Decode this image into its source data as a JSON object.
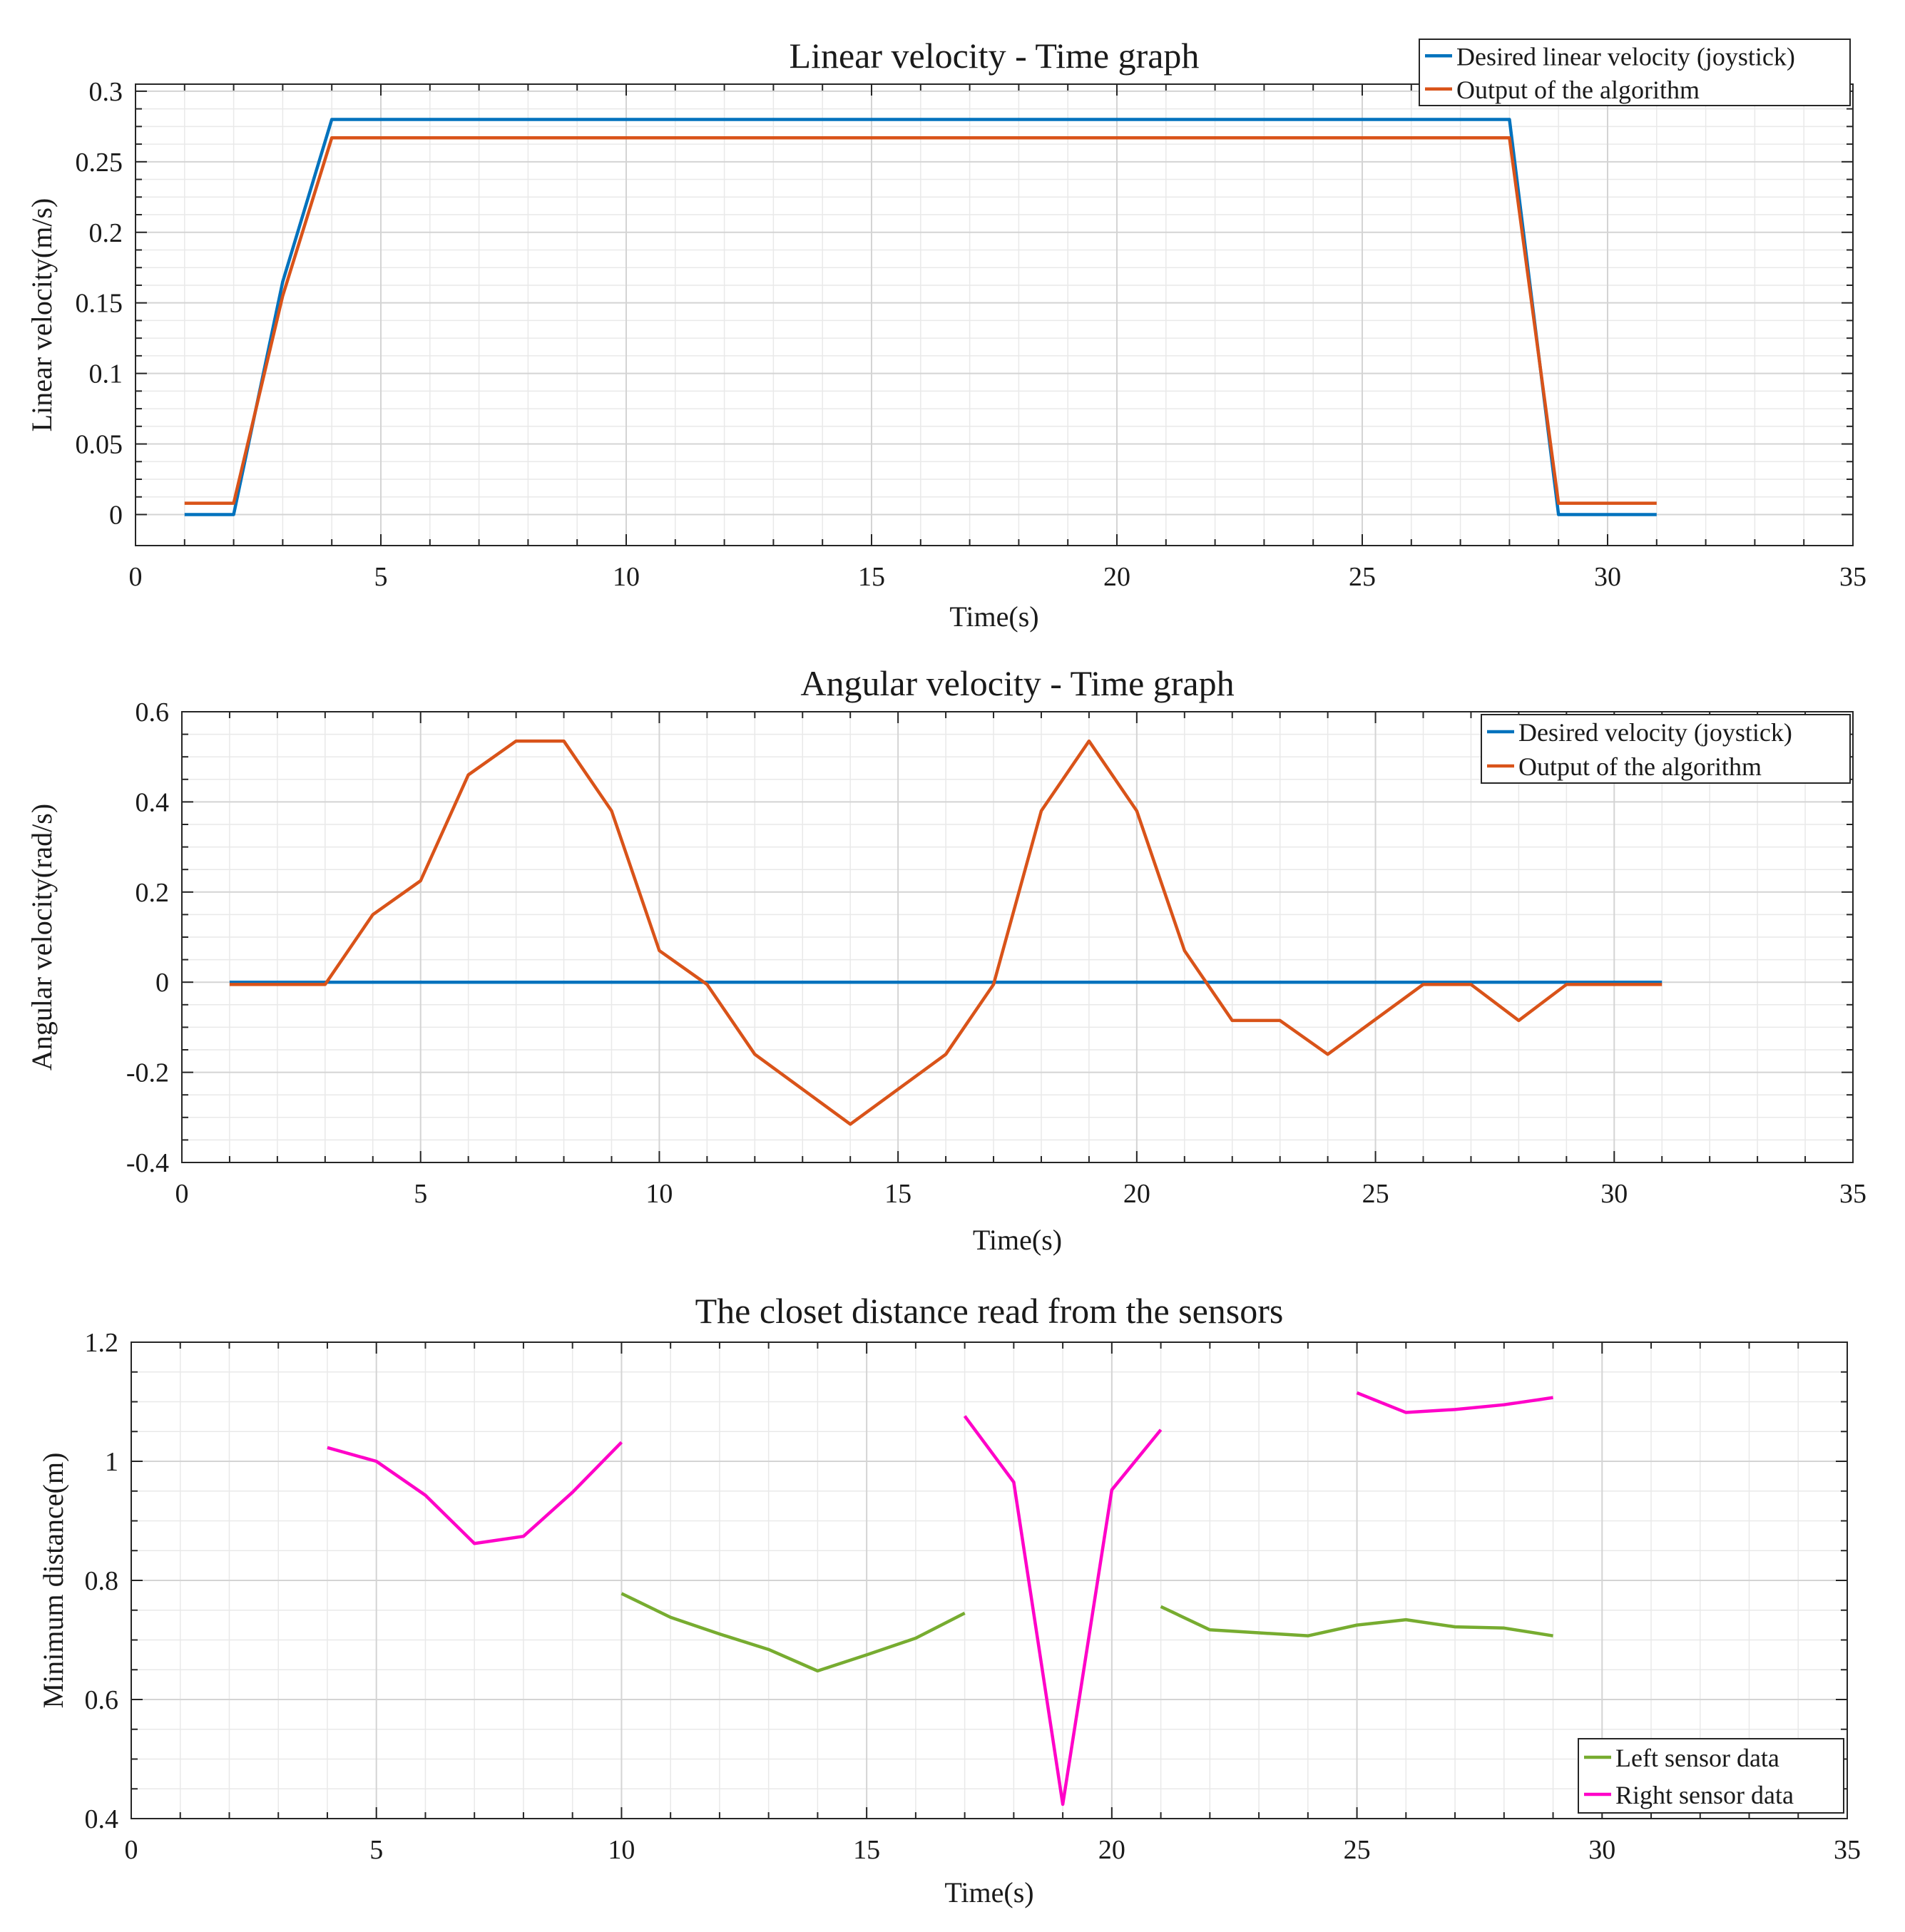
{
  "figure": {
    "description_labels": [
      "Linear velocity - Time graph",
      "Angular velocity - Time graph",
      "The closet distance read from the sensors"
    ]
  },
  "chart_data": [
    {
      "type": "line",
      "title": "Linear velocity - Time graph",
      "xlabel": "Time(s)",
      "ylabel": "Linear velocity(m/s)",
      "xlim": [
        0,
        35
      ],
      "ylim": [
        -0.022,
        0.305
      ],
      "xticks": [
        0,
        5,
        10,
        15,
        20,
        25,
        30,
        35
      ],
      "xtick_labels": [
        "0",
        "5",
        "10",
        "15",
        "20",
        "25",
        "30",
        "35"
      ],
      "yticks": [
        0,
        0.05,
        0.1,
        0.15,
        0.2,
        0.25,
        0.3
      ],
      "ytick_labels": [
        "0",
        "0.05",
        "0.1",
        "0.15",
        "0.2",
        "0.25",
        "0.3"
      ],
      "grid": true,
      "legend_position": "top-right",
      "series": [
        {
          "name": "Desired linear velocity (joystick)",
          "color": "#0072BD",
          "x": [
            1,
            2,
            3,
            4,
            28,
            29,
            31
          ],
          "y": [
            0,
            0,
            0.165,
            0.28,
            0.28,
            0,
            0
          ]
        },
        {
          "name": "Output of the algorithm",
          "color": "#D95319",
          "x": [
            1,
            2,
            3,
            4,
            28,
            29,
            31
          ],
          "y": [
            0.008,
            0.008,
            0.155,
            0.267,
            0.267,
            0.008,
            0.008
          ]
        }
      ]
    },
    {
      "type": "line",
      "title": "Angular velocity - Time graph",
      "xlabel": "Time(s)",
      "ylabel": "Angular velocity(rad/s)",
      "xlim": [
        0,
        35
      ],
      "ylim": [
        -0.4,
        0.6
      ],
      "xticks": [
        0,
        5,
        10,
        15,
        20,
        25,
        30,
        35
      ],
      "xtick_labels": [
        "0",
        "5",
        "10",
        "15",
        "20",
        "25",
        "30",
        "35"
      ],
      "yticks": [
        -0.4,
        -0.2,
        0,
        0.2,
        0.4,
        0.6
      ],
      "ytick_labels": [
        "-0.4",
        "-0.2",
        "0",
        "0.2",
        "0.4",
        "0.6"
      ],
      "grid": true,
      "legend_position": "top-right",
      "series": [
        {
          "name": "Desired velocity (joystick)",
          "color": "#0072BD",
          "x": [
            1,
            31
          ],
          "y": [
            0,
            0
          ]
        },
        {
          "name": "Output of the algorithm",
          "color": "#D95319",
          "x": [
            1,
            2,
            3,
            4,
            5,
            6,
            7,
            8,
            9,
            10,
            11,
            12,
            14,
            16,
            17,
            18,
            19,
            20,
            21,
            22,
            23,
            24,
            26,
            27,
            28,
            29,
            31
          ],
          "y": [
            -0.005,
            -0.005,
            -0.005,
            0.15,
            0.225,
            0.46,
            0.535,
            0.535,
            0.38,
            0.07,
            -0.005,
            -0.16,
            -0.315,
            -0.16,
            -0.005,
            0.38,
            0.535,
            0.38,
            0.07,
            -0.085,
            -0.085,
            -0.16,
            -0.005,
            -0.005,
            -0.085,
            -0.005,
            -0.005
          ]
        }
      ]
    },
    {
      "type": "line",
      "title": "The closet distance read from the sensors",
      "xlabel": "Time(s)",
      "ylabel": "Minimum distance(m)",
      "xlim": [
        0,
        35
      ],
      "ylim": [
        0.4,
        1.2
      ],
      "xticks": [
        0,
        5,
        10,
        15,
        20,
        25,
        30,
        35
      ],
      "xtick_labels": [
        "0",
        "5",
        "10",
        "15",
        "20",
        "25",
        "30",
        "35"
      ],
      "yticks": [
        0.4,
        0.6,
        0.8,
        1,
        1.2
      ],
      "ytick_labels": [
        "0.4",
        "0.6",
        "0.8",
        "1",
        "1.2"
      ],
      "grid": true,
      "legend_position": "bottom-right",
      "series": [
        {
          "name": "Left sensor data",
          "color": "#77AC30",
          "segments": [
            {
              "x": [
                10,
                11,
                12,
                13,
                14,
                15,
                16,
                17
              ],
              "y": [
                0.778,
                0.738,
                0.71,
                0.684,
                0.648,
                0.675,
                0.703,
                0.745
              ]
            },
            {
              "x": [
                21,
                22,
                23,
                24,
                25,
                26,
                27,
                28,
                29
              ],
              "y": [
                0.756,
                0.717,
                0.712,
                0.707,
                0.725,
                0.734,
                0.722,
                0.72,
                0.707
              ]
            }
          ]
        },
        {
          "name": "Right sensor data",
          "color": "#FF00C8",
          "segments": [
            {
              "x": [
                4,
                5,
                6,
                7,
                8,
                9,
                10
              ],
              "y": [
                1.023,
                1.0,
                0.943,
                0.862,
                0.874,
                0.948,
                1.032
              ]
            },
            {
              "x": [
                17,
                18,
                19,
                20,
                21
              ],
              "y": [
                1.076,
                0.965,
                0.424,
                0.952,
                1.053
              ]
            },
            {
              "x": [
                25,
                26,
                27,
                28,
                29
              ],
              "y": [
                1.115,
                1.082,
                1.087,
                1.095,
                1.107
              ]
            }
          ]
        }
      ]
    }
  ]
}
